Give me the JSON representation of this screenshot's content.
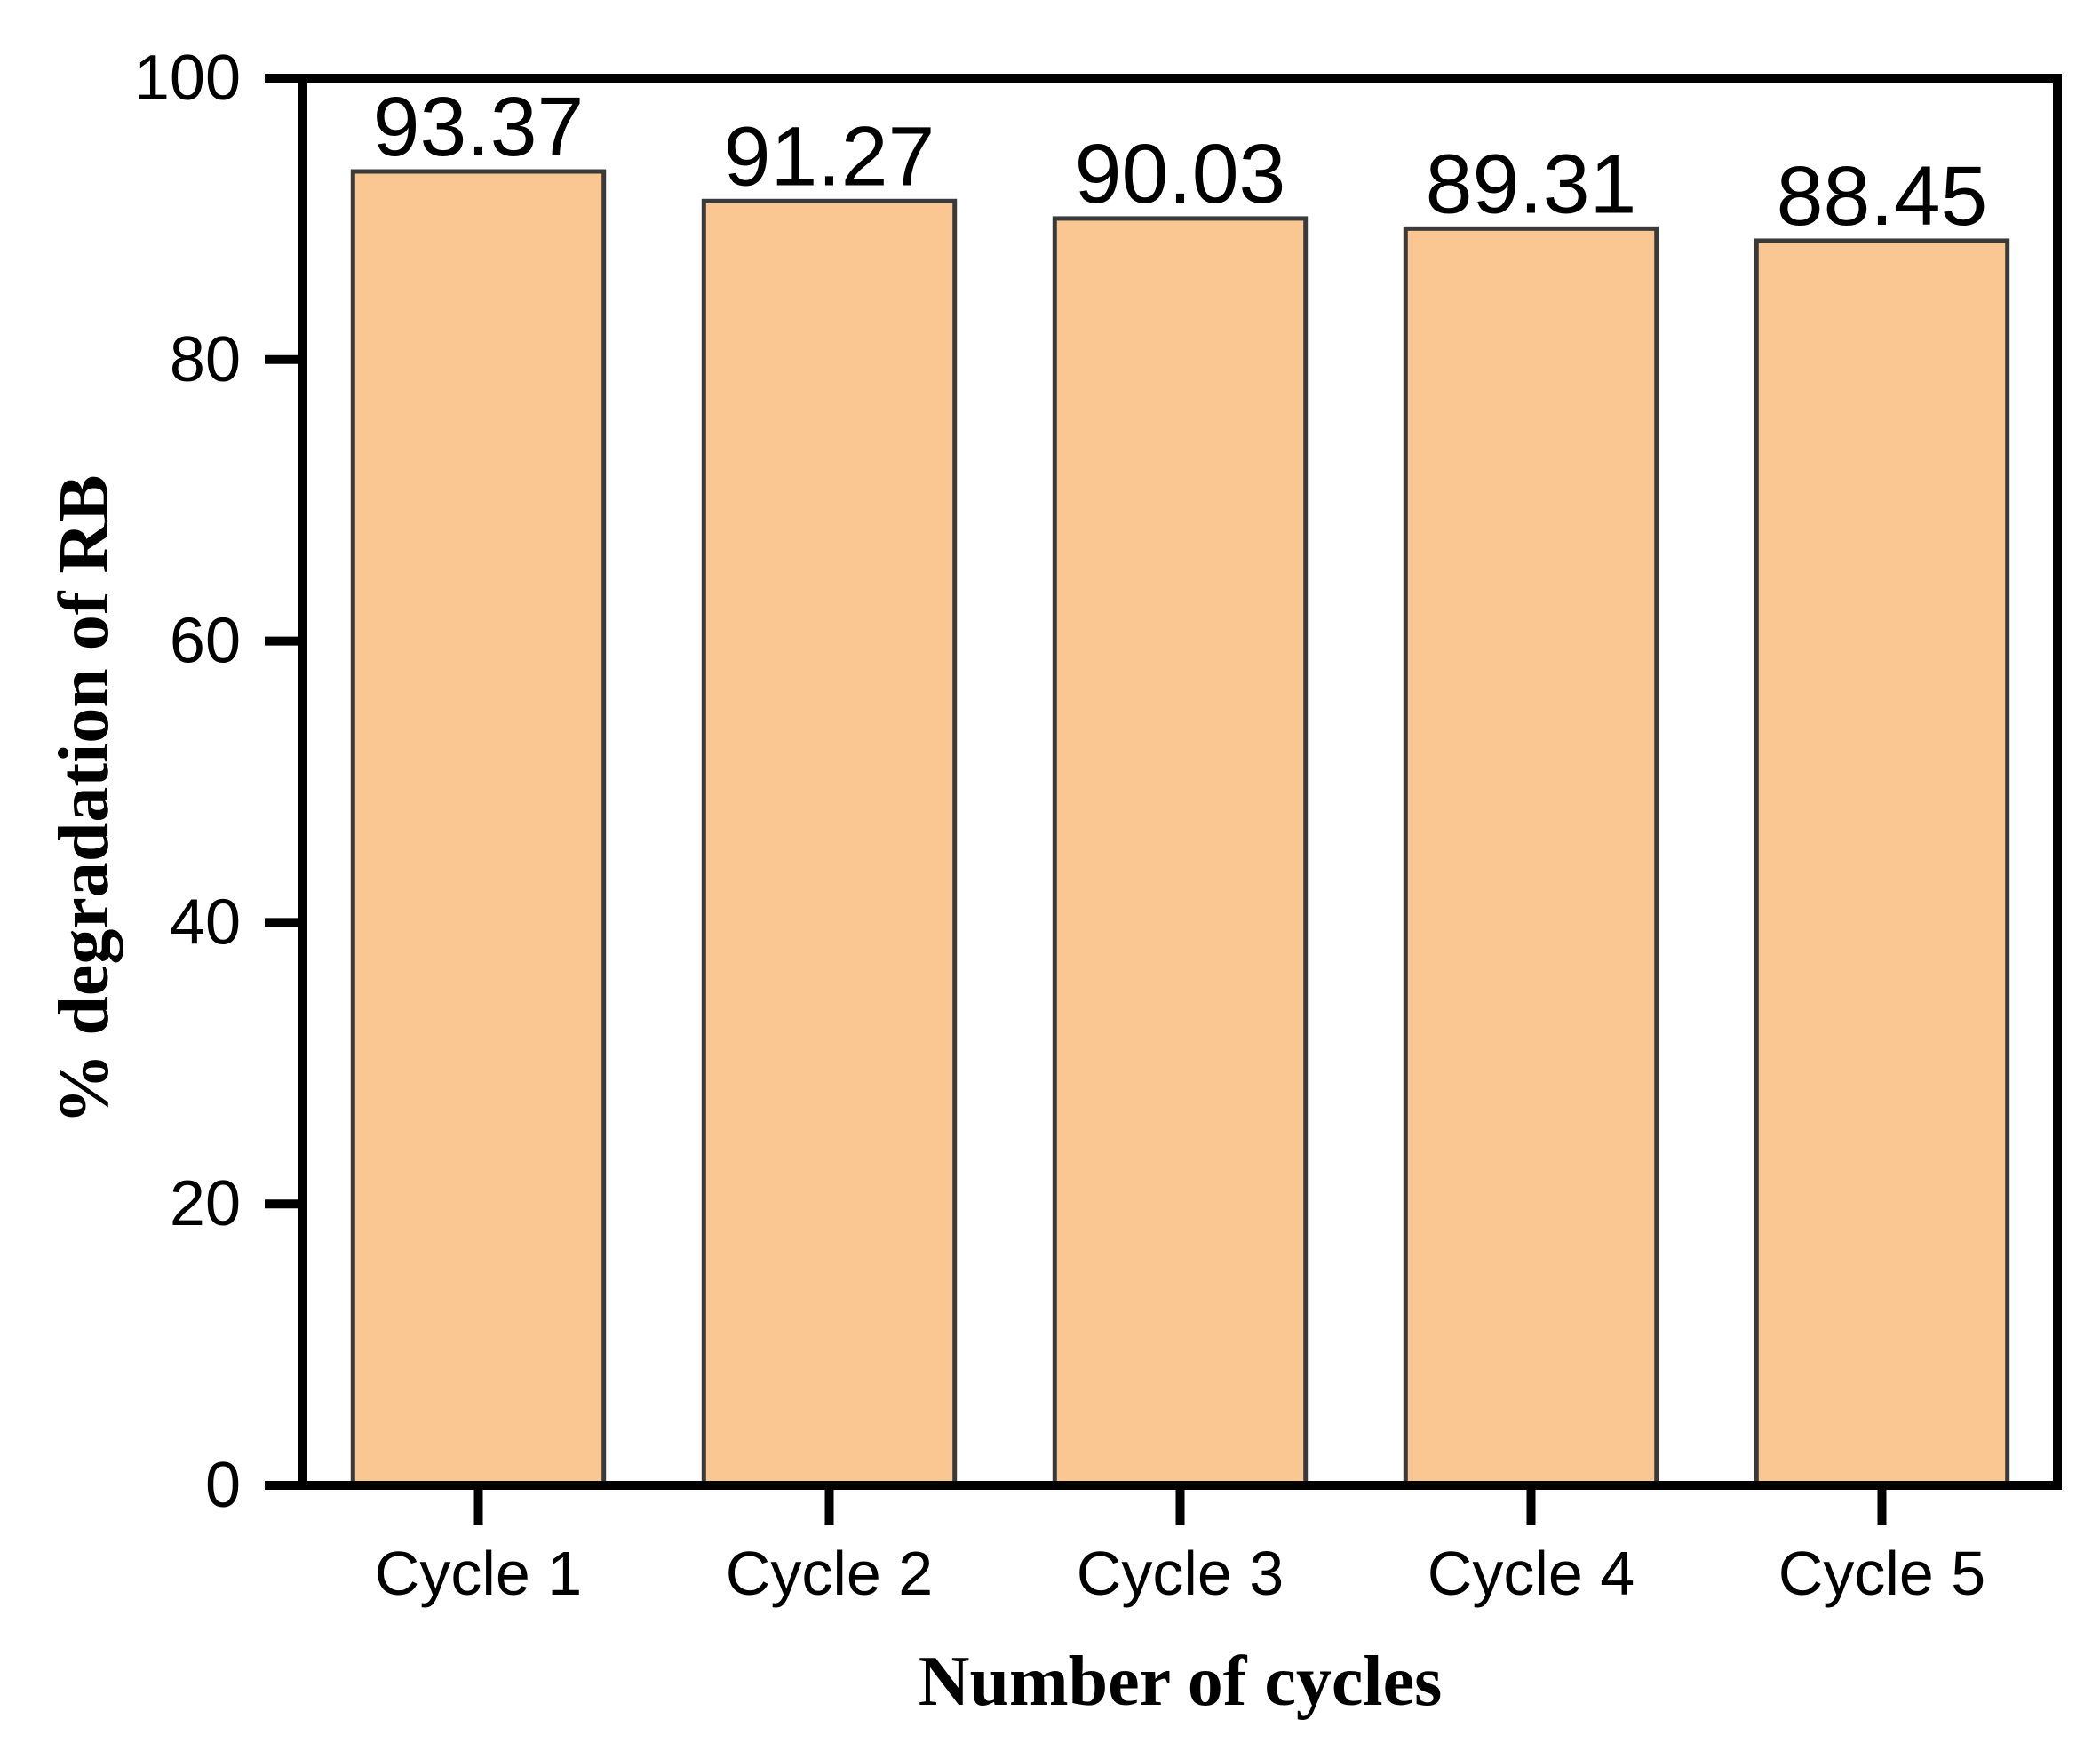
{
  "chart_data": {
    "type": "bar",
    "title": "",
    "categories": [
      "Cycle 1",
      "Cycle 2",
      "Cycle 3",
      "Cycle 4",
      "Cycle 5"
    ],
    "values": [
      93.37,
      91.27,
      90.03,
      89.31,
      88.45
    ],
    "bar_value_labels": [
      "93.37",
      "91.27",
      "90.03",
      "89.31",
      "88.45"
    ],
    "xlabel": "Number of cycles",
    "ylabel": "% degradation of RB",
    "ylim": [
      0,
      100
    ],
    "yticks": [
      0,
      20,
      40,
      60,
      80,
      100
    ],
    "ytick_labels": [
      "0",
      "20",
      "40",
      "60",
      "80",
      "100"
    ],
    "grid": false,
    "legend": null,
    "bar_fill_color": "#FAC792",
    "bar_border_color": "#3A3A3A",
    "axis_color": "#000000",
    "text_color": "#000000",
    "background_color": "#FFFFFF"
  }
}
